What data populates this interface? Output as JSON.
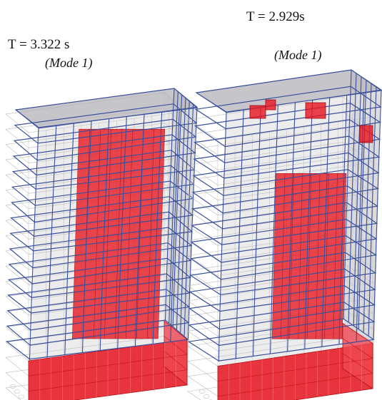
{
  "figure": {
    "left_model": {
      "period_label": "T = 3.322 s",
      "mode_label": "(Mode 1)"
    },
    "right_model": {
      "period_label": "T = 2.929s",
      "mode_label": "(Mode 1)"
    }
  },
  "colors": {
    "frame_deformed": "#3a4f9c",
    "frame_undeformed": "#b9b9b9",
    "core_walls": "#e8141e",
    "slab_fill": "#c9c9cc"
  }
}
